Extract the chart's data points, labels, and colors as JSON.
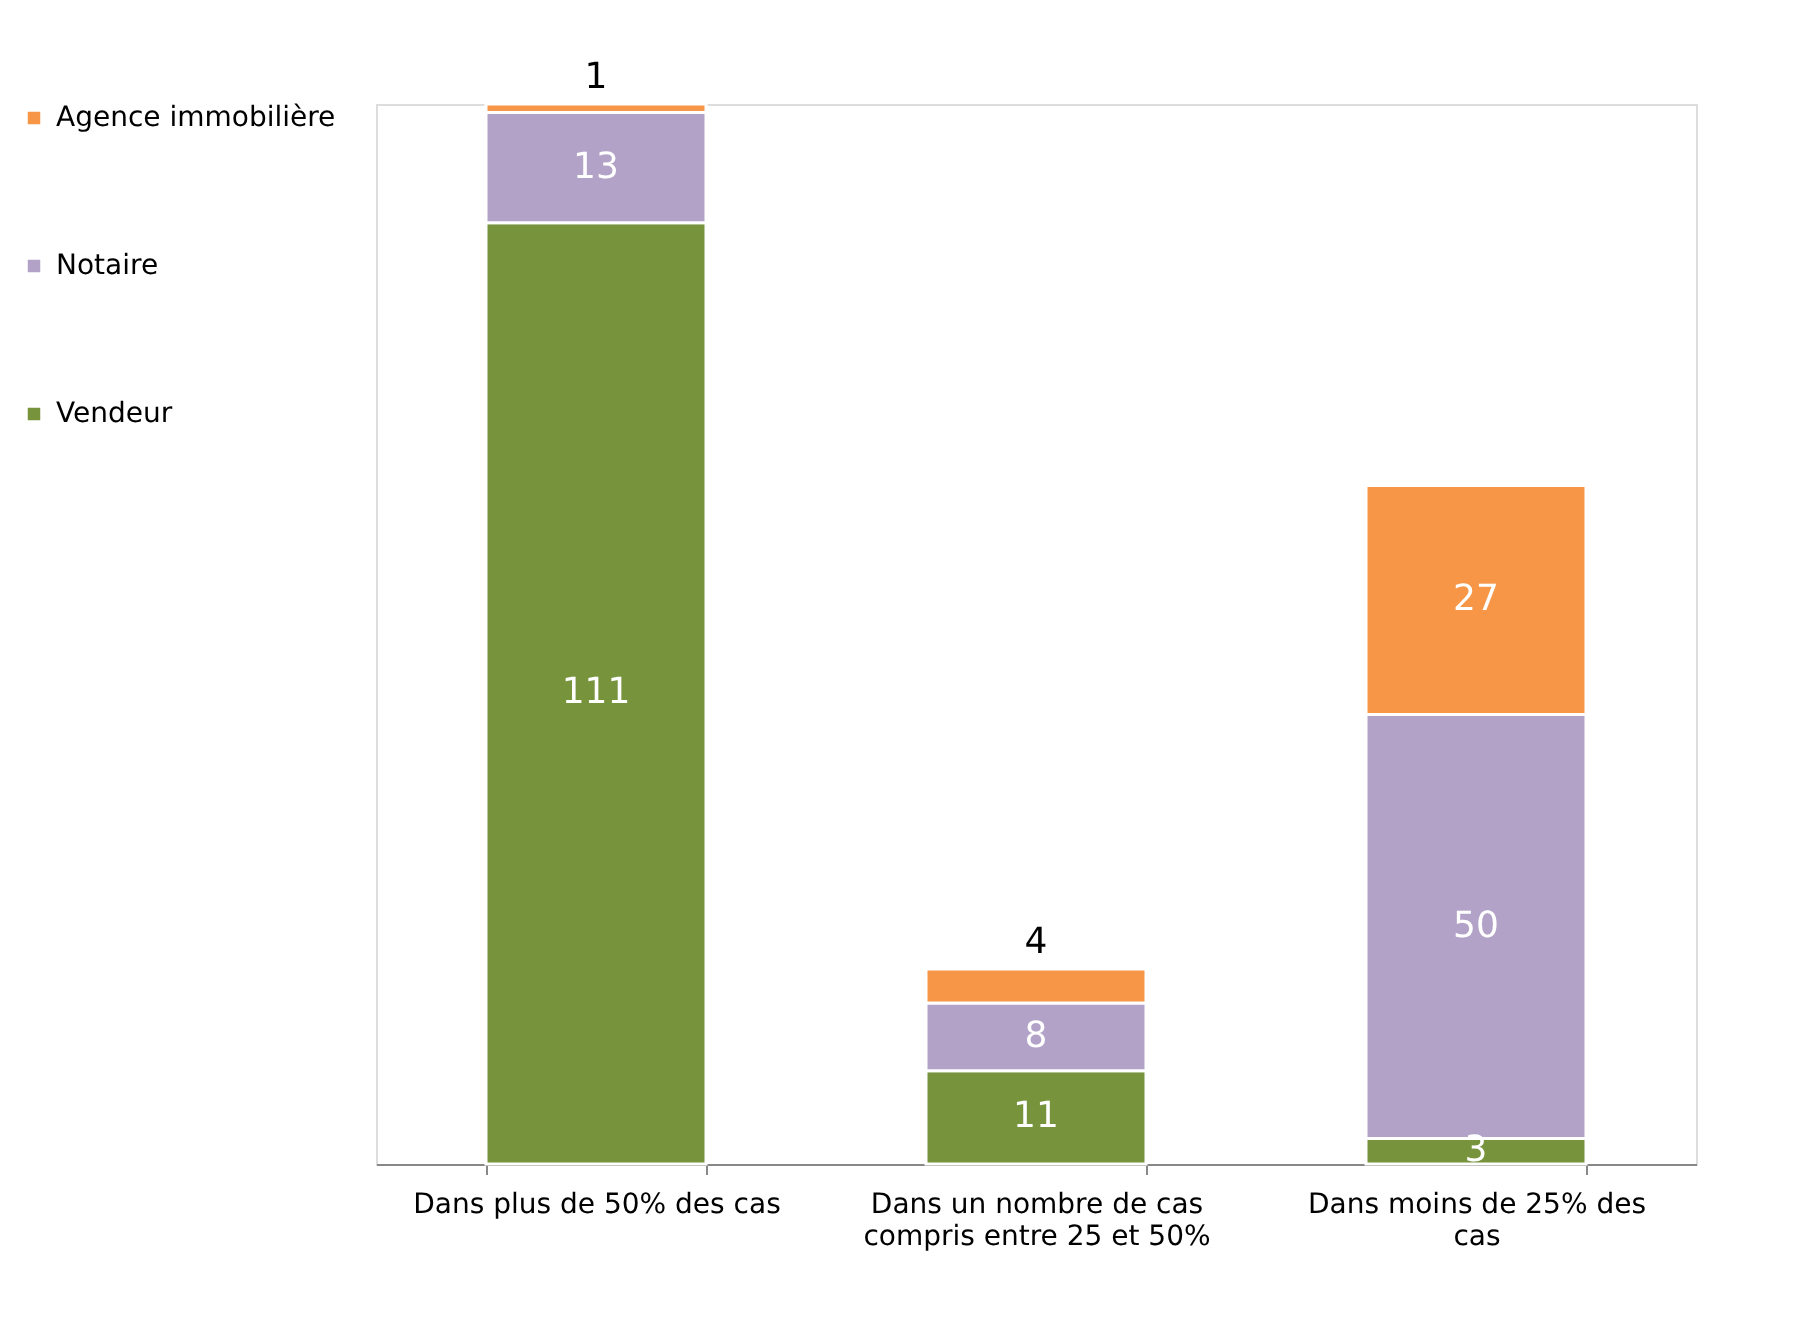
{
  "chart_data": {
    "type": "bar",
    "stacked": true,
    "data_labels": true,
    "legend": "left",
    "grid": false,
    "categories": [
      "Dans plus de 50% des cas",
      "Dans un nombre de cas compris entre 25 et 50%",
      "Dans moins de 25% des cas"
    ],
    "series": [
      {
        "name": "Vendeur",
        "color": "#77933c",
        "values": [
          111,
          11,
          3
        ]
      },
      {
        "name": "Notaire",
        "color": "#b3a2c7",
        "values": [
          13,
          8,
          50
        ]
      },
      {
        "name": "Agence immobilière",
        "color": "#f79646",
        "values": [
          1,
          4,
          27
        ]
      }
    ]
  }
}
